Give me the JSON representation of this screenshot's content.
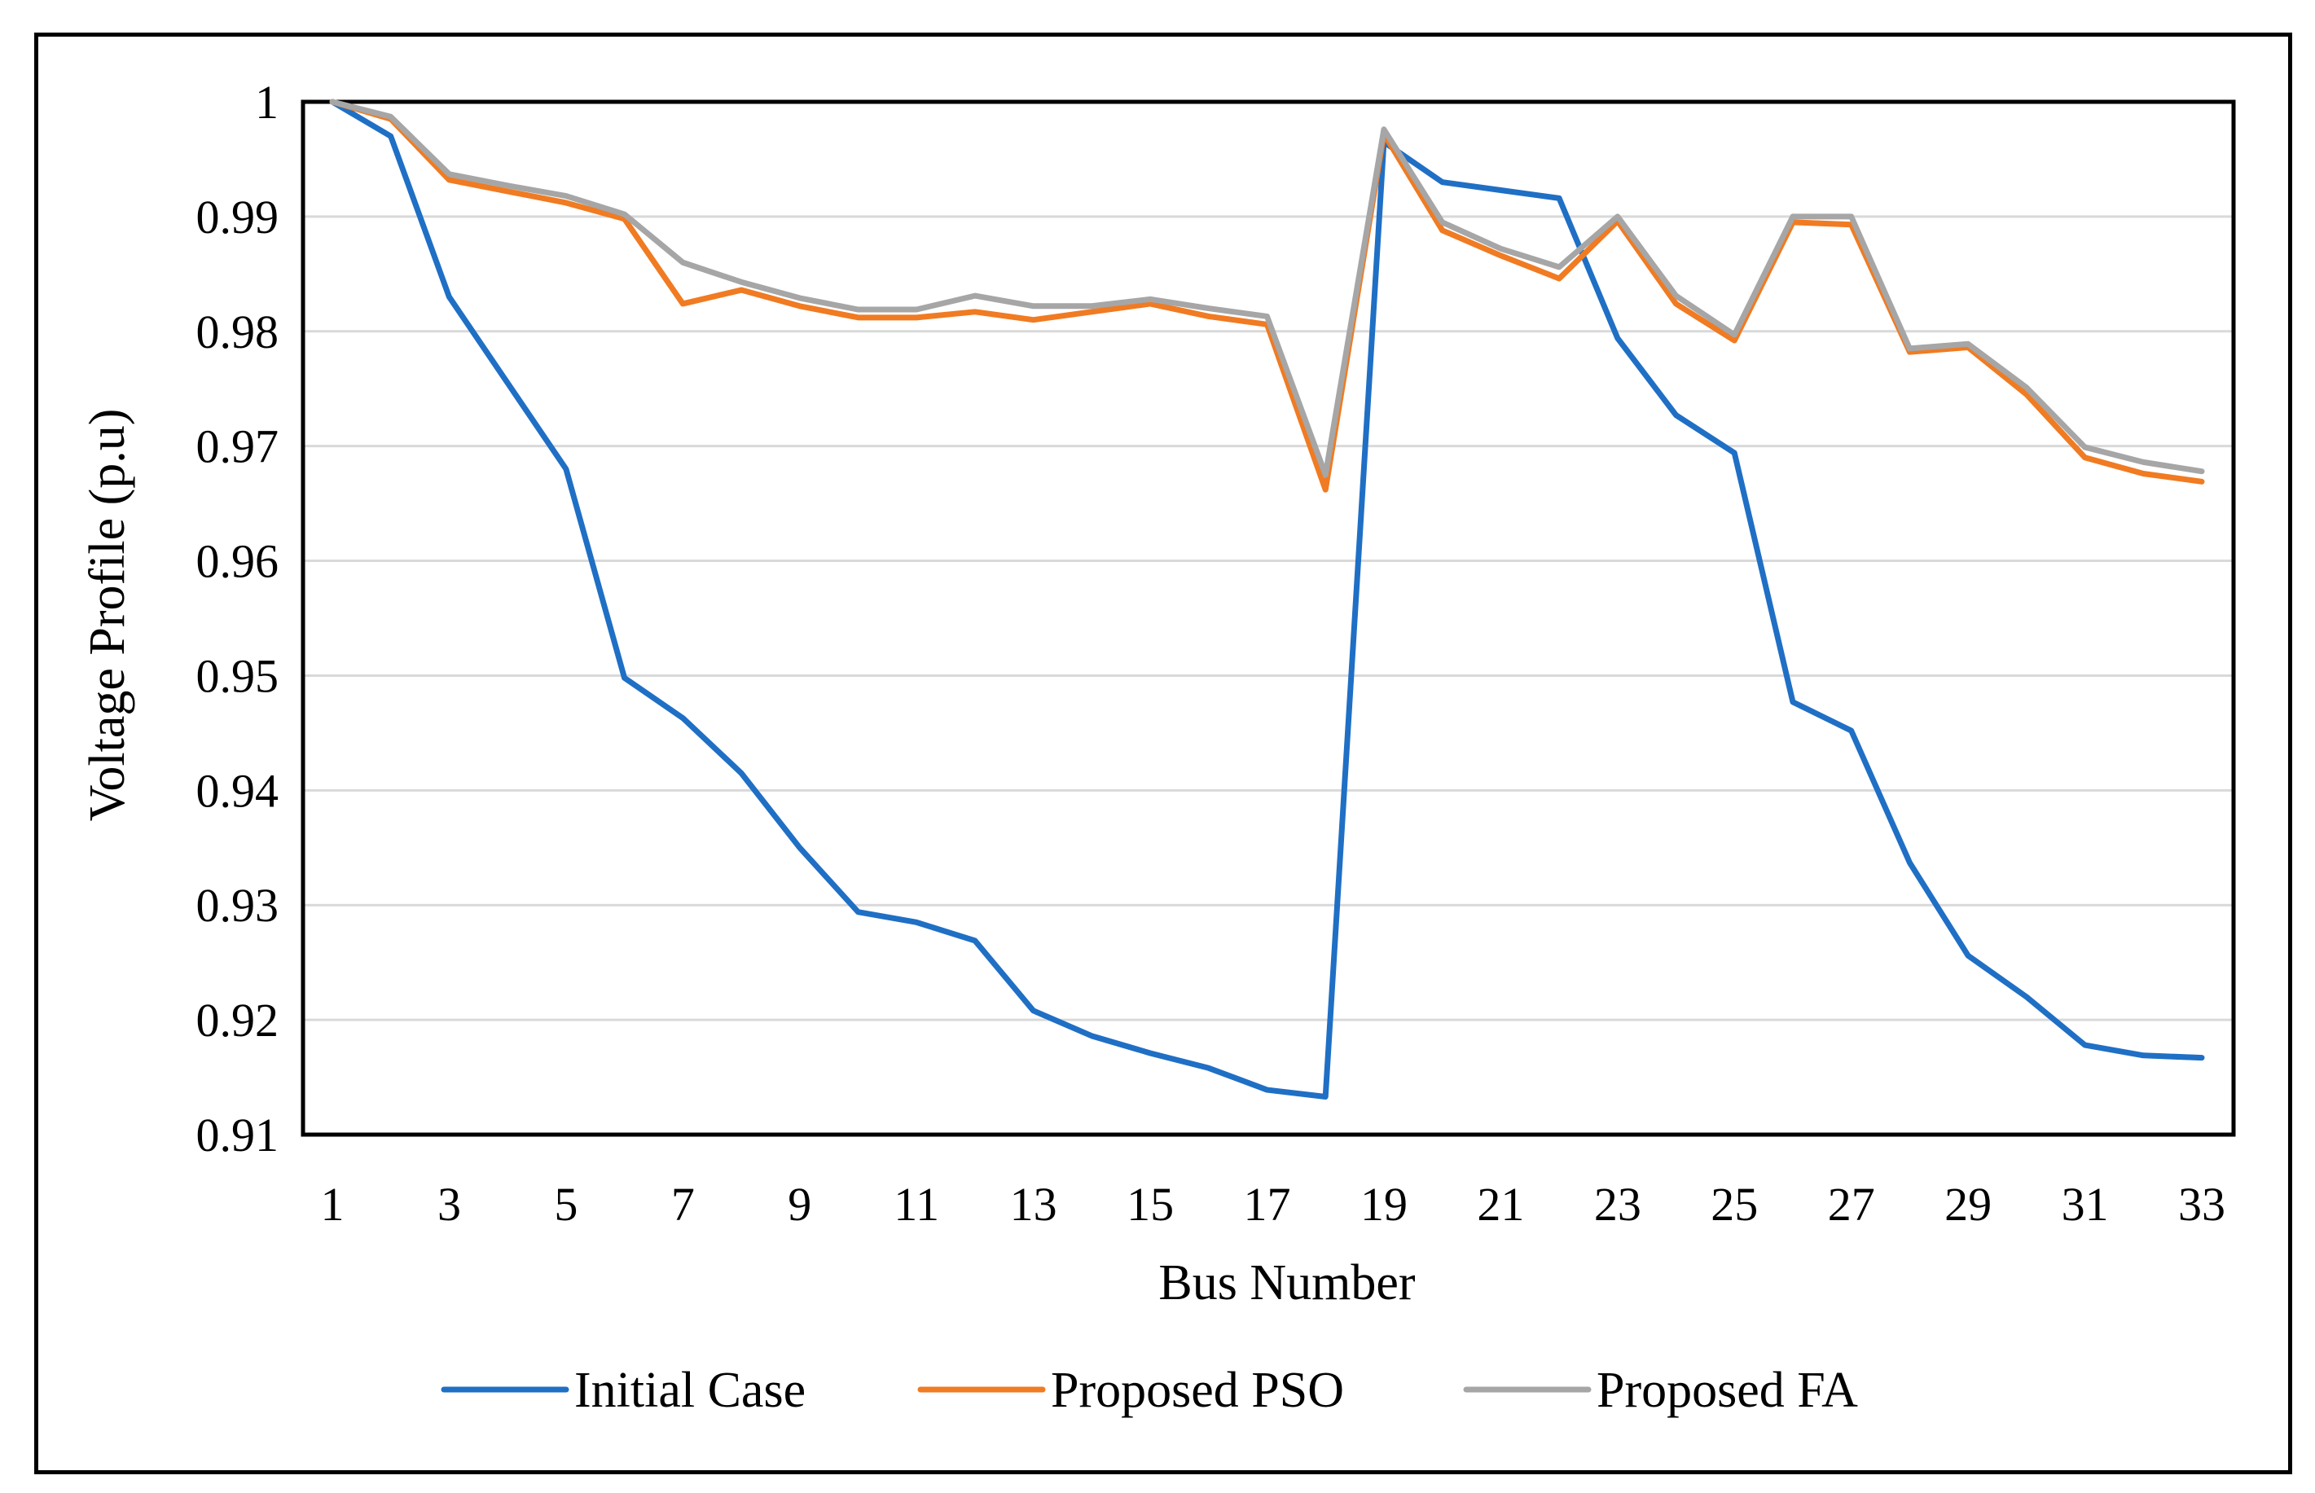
{
  "chart_data": {
    "type": "line",
    "title": "",
    "xlabel": "Bus Number",
    "ylabel": "Voltage Profile (p.u)",
    "ylim": [
      0.91,
      1.0
    ],
    "yticks": [
      "0.91",
      "0.92",
      "0.93",
      "0.94",
      "0.95",
      "0.96",
      "0.97",
      "0.98",
      "0.99",
      "1"
    ],
    "xticks": [
      "1",
      "3",
      "5",
      "7",
      "9",
      "11",
      "13",
      "15",
      "17",
      "19",
      "21",
      "23",
      "25",
      "27",
      "29",
      "31",
      "33"
    ],
    "grid": true,
    "legend": "bottom",
    "x": [
      1,
      2,
      3,
      4,
      5,
      6,
      7,
      8,
      9,
      10,
      11,
      12,
      13,
      14,
      15,
      16,
      17,
      18,
      19,
      20,
      21,
      22,
      23,
      24,
      25,
      26,
      27,
      28,
      29,
      30,
      31,
      32,
      33
    ],
    "series": [
      {
        "name": "Initial Case",
        "color": "#1F6FC5",
        "values": [
          1.0,
          0.997,
          0.983,
          0.9755,
          0.968,
          0.9498,
          0.9463,
          0.9415,
          0.935,
          0.9294,
          0.9285,
          0.9269,
          0.9208,
          0.9186,
          0.9171,
          0.9158,
          0.9139,
          0.9133,
          0.9965,
          0.993,
          0.9923,
          0.9916,
          0.9794,
          0.9727,
          0.9694,
          0.9477,
          0.9452,
          0.9337,
          0.9256,
          0.922,
          0.9178,
          0.9169,
          0.9167
        ]
      },
      {
        "name": "Proposed PSO",
        "color": "#F07B22",
        "values": [
          1.0,
          0.9985,
          0.9932,
          0.9922,
          0.9912,
          0.9898,
          0.9824,
          0.9836,
          0.9822,
          0.9812,
          0.9812,
          0.9817,
          0.981,
          0.9817,
          0.9824,
          0.9813,
          0.9806,
          0.9662,
          0.9972,
          0.9888,
          0.9866,
          0.9846,
          0.9896,
          0.9824,
          0.9792,
          0.9895,
          0.9893,
          0.9782,
          0.9786,
          0.9745,
          0.969,
          0.9676,
          0.9669
        ]
      },
      {
        "name": "Proposed FA",
        "color": "#A6A6A6",
        "values": [
          1.0,
          0.9987,
          0.9937,
          0.9927,
          0.9918,
          0.9902,
          0.986,
          0.9843,
          0.9829,
          0.9819,
          0.9819,
          0.9831,
          0.9822,
          0.9822,
          0.9828,
          0.982,
          0.9813,
          0.9675,
          0.9976,
          0.9895,
          0.9872,
          0.9856,
          0.99,
          0.9831,
          0.9797,
          0.99,
          0.99,
          0.9785,
          0.9789,
          0.9751,
          0.9699,
          0.9686,
          0.9678
        ]
      }
    ]
  }
}
